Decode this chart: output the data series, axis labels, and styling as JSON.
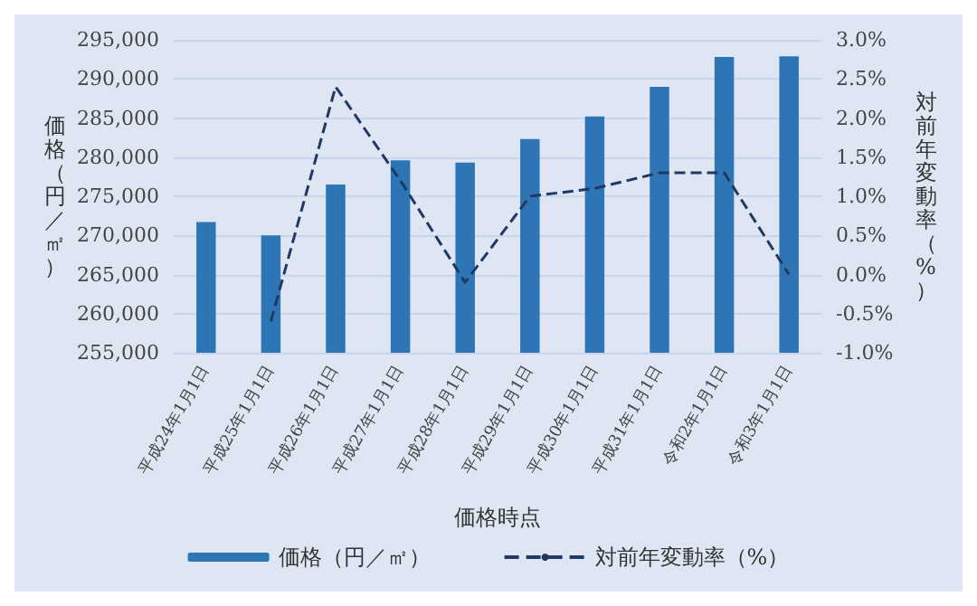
{
  "chart_data": {
    "type": "bar",
    "xlabel": "価格時点",
    "ylabel": "価格（円／㎡）",
    "y2label": "対前年変動率（%）",
    "categories": [
      "平成24年1月1日",
      "平成25年1月1日",
      "平成26年1月1日",
      "平成27年1月1日",
      "平成28年1月1日",
      "平成29年1月1日",
      "平成30年1月1日",
      "平成31年1月1日",
      "令和2年1月1日",
      "令和3年1月1日"
    ],
    "series": [
      {
        "name": "価格（円／㎡）",
        "color": "#2e75b6",
        "values": [
          271700,
          270000,
          276500,
          279600,
          279300,
          282300,
          285200,
          289000,
          292800,
          292900
        ]
      },
      {
        "name": "対前年変動率（%）",
        "type": "line",
        "axis": "y2",
        "color": "#1f3864",
        "line_style": "dashed",
        "marker": "none",
        "values": [
          null,
          -0.6,
          2.4,
          1.2,
          -0.1,
          1.0,
          1.1,
          1.3,
          1.3,
          0.0
        ]
      }
    ],
    "ylim": [
      255000,
      295000
    ],
    "yticks": [
      {
        "value": 255000,
        "label": "255,000"
      },
      {
        "value": 260000,
        "label": "260,000"
      },
      {
        "value": 265000,
        "label": "265,000"
      },
      {
        "value": 270000,
        "label": "270,000"
      },
      {
        "value": 275000,
        "label": "275,000"
      },
      {
        "value": 280000,
        "label": "280,000"
      },
      {
        "value": 285000,
        "label": "285,000"
      },
      {
        "value": 290000,
        "label": "290,000"
      },
      {
        "value": 295000,
        "label": "295,000"
      }
    ],
    "y2lim": [
      -1.0,
      3.0
    ],
    "y2ticks": [
      {
        "value": -1.0,
        "label": "-1.0%"
      },
      {
        "value": -0.5,
        "label": "-0.5%"
      },
      {
        "value": 0.0,
        "label": "0.0%"
      },
      {
        "value": 0.5,
        "label": "0.5%"
      },
      {
        "value": 1.0,
        "label": "1.0%"
      },
      {
        "value": 1.5,
        "label": "1.5%"
      },
      {
        "value": 2.0,
        "label": "2.0%"
      },
      {
        "value": 2.5,
        "label": "2.5%"
      },
      {
        "value": 3.0,
        "label": "3.0%"
      }
    ],
    "grid": "y",
    "legend": "bottom"
  }
}
